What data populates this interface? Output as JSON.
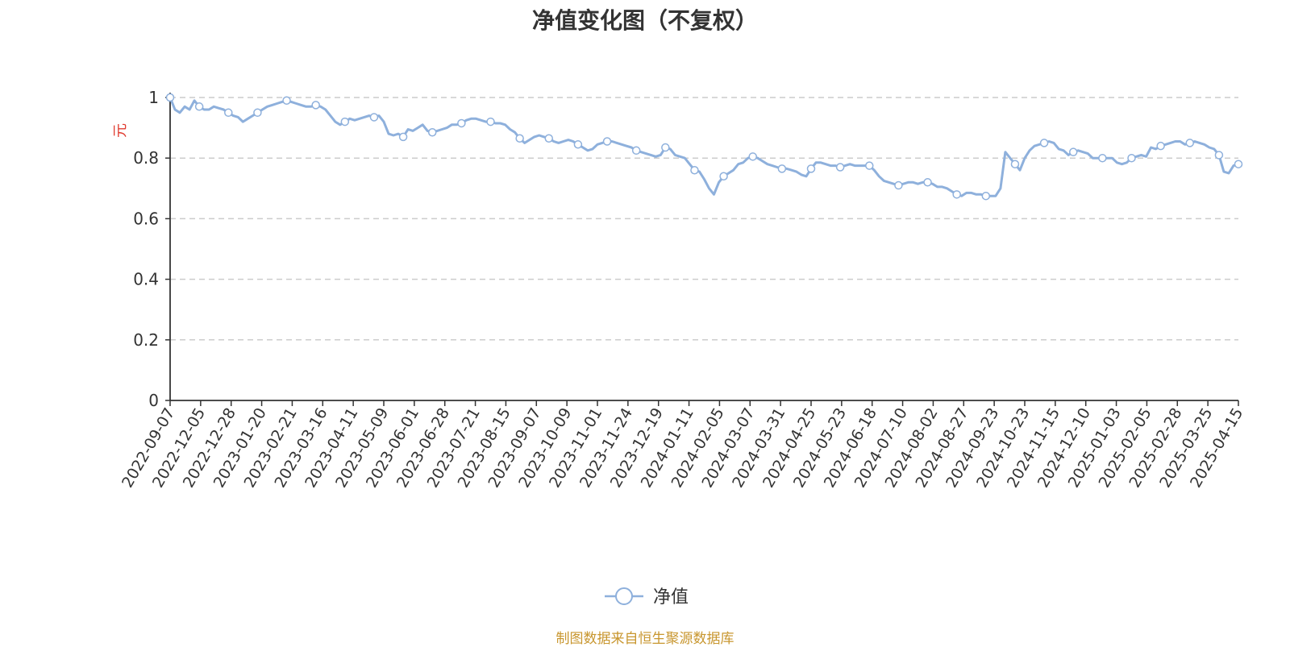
{
  "chart_data": {
    "type": "line",
    "title": "净值变化图（不复权）",
    "ylabel": "元",
    "ylim": [
      0,
      1
    ],
    "yticks": [
      "0",
      "0.2",
      "0.4",
      "0.6",
      "0.8",
      "1"
    ],
    "grid": true,
    "legend": {
      "position": "bottom-center",
      "entries": [
        "净值"
      ]
    },
    "colors": {
      "line": "#8eb0dc",
      "marker_fill": "#ffffff",
      "grid": "#cccccc",
      "axis": "#333333"
    },
    "x_tick_labels": [
      "2022-09-07",
      "2022-12-05",
      "2022-12-28",
      "2023-01-20",
      "2023-02-21",
      "2023-03-16",
      "2023-04-11",
      "2023-05-09",
      "2023-06-01",
      "2023-06-28",
      "2023-07-21",
      "2023-08-15",
      "2023-09-07",
      "2023-10-09",
      "2023-11-01",
      "2023-11-24",
      "2023-12-19",
      "2024-01-11",
      "2024-02-05",
      "2024-03-07",
      "2024-03-31",
      "2024-04-25",
      "2024-05-23",
      "2024-06-18",
      "2024-07-10",
      "2024-08-02",
      "2024-08-27",
      "2024-09-23",
      "2024-10-23",
      "2024-11-15",
      "2024-12-10",
      "2025-01-03",
      "2025-02-05",
      "2025-02-28",
      "2025-03-25",
      "2025-04-15"
    ],
    "series": [
      {
        "name": "净值",
        "values": [
          1.0,
          0.96,
          0.95,
          0.97,
          0.96,
          0.99,
          0.97,
          0.96,
          0.96,
          0.97,
          0.965,
          0.96,
          0.95,
          0.94,
          0.935,
          0.92,
          0.93,
          0.94,
          0.95,
          0.96,
          0.97,
          0.975,
          0.98,
          0.985,
          0.99,
          0.985,
          0.98,
          0.975,
          0.97,
          0.97,
          0.975,
          0.97,
          0.96,
          0.94,
          0.92,
          0.91,
          0.92,
          0.93,
          0.925,
          0.93,
          0.935,
          0.94,
          0.935,
          0.94,
          0.92,
          0.88,
          0.875,
          0.88,
          0.87,
          0.895,
          0.89,
          0.9,
          0.91,
          0.89,
          0.885,
          0.89,
          0.895,
          0.9,
          0.91,
          0.91,
          0.915,
          0.925,
          0.93,
          0.93,
          0.925,
          0.92,
          0.92,
          0.915,
          0.915,
          0.91,
          0.895,
          0.885,
          0.865,
          0.85,
          0.86,
          0.87,
          0.875,
          0.87,
          0.865,
          0.855,
          0.85,
          0.855,
          0.86,
          0.855,
          0.845,
          0.835,
          0.825,
          0.83,
          0.845,
          0.85,
          0.855,
          0.855,
          0.85,
          0.845,
          0.84,
          0.835,
          0.825,
          0.82,
          0.815,
          0.81,
          0.805,
          0.81,
          0.835,
          0.83,
          0.81,
          0.805,
          0.8,
          0.78,
          0.76,
          0.755,
          0.73,
          0.7,
          0.68,
          0.72,
          0.74,
          0.75,
          0.76,
          0.78,
          0.785,
          0.8,
          0.805,
          0.8,
          0.79,
          0.78,
          0.775,
          0.77,
          0.765,
          0.765,
          0.76,
          0.755,
          0.745,
          0.74,
          0.765,
          0.785,
          0.785,
          0.78,
          0.775,
          0.775,
          0.77,
          0.775,
          0.78,
          0.775,
          0.775,
          0.775,
          0.775,
          0.76,
          0.74,
          0.725,
          0.72,
          0.715,
          0.71,
          0.715,
          0.72,
          0.72,
          0.715,
          0.72,
          0.72,
          0.715,
          0.705,
          0.705,
          0.7,
          0.69,
          0.68,
          0.675,
          0.685,
          0.685,
          0.68,
          0.68,
          0.675,
          0.675,
          0.675,
          0.7,
          0.82,
          0.8,
          0.78,
          0.76,
          0.8,
          0.825,
          0.84,
          0.845,
          0.85,
          0.855,
          0.85,
          0.83,
          0.825,
          0.81,
          0.82,
          0.825,
          0.82,
          0.815,
          0.8,
          0.8,
          0.8,
          0.8,
          0.8,
          0.785,
          0.78,
          0.785,
          0.8,
          0.805,
          0.81,
          0.805,
          0.835,
          0.83,
          0.84,
          0.845,
          0.85,
          0.855,
          0.855,
          0.845,
          0.85,
          0.855,
          0.85,
          0.845,
          0.835,
          0.83,
          0.81,
          0.755,
          0.75,
          0.775,
          0.78
        ]
      }
    ],
    "source_note": "制图数据来自恒生聚源数据库"
  }
}
